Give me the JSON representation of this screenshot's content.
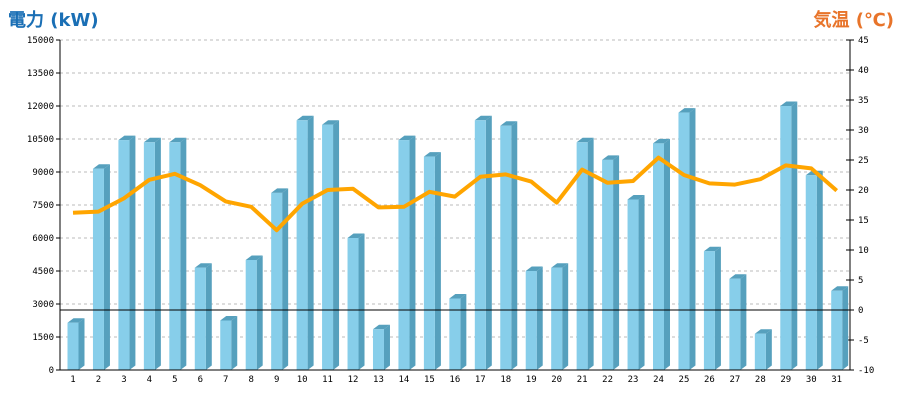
{
  "chart_data": {
    "type": "bar",
    "left_title": "電力 (kW)",
    "right_title": "気温 (℃)",
    "categories": [
      "1",
      "2",
      "3",
      "4",
      "5",
      "6",
      "7",
      "8",
      "9",
      "10",
      "11",
      "12",
      "13",
      "14",
      "15",
      "16",
      "17",
      "18",
      "19",
      "20",
      "21",
      "22",
      "23",
      "24",
      "25",
      "26",
      "27",
      "28",
      "29",
      "30",
      "31"
    ],
    "series": [
      {
        "name": "電力 (kW)",
        "type": "bar",
        "axis": "left",
        "values": [
          2150,
          9150,
          10450,
          10350,
          10350,
          4650,
          2250,
          5000,
          8050,
          11350,
          11150,
          6000,
          1850,
          10450,
          9700,
          3250,
          11350,
          11100,
          4500,
          4650,
          10350,
          9550,
          7750,
          10300,
          11700,
          5400,
          4150,
          1650,
          12000,
          8850,
          3600
        ]
      },
      {
        "name": "気温 (℃)",
        "type": "line",
        "axis": "right",
        "values": [
          16.2,
          16.4,
          18.6,
          21.7,
          22.7,
          20.8,
          18.1,
          17.2,
          13.3,
          17.7,
          20.0,
          20.2,
          17.1,
          17.2,
          19.7,
          18.9,
          22.2,
          22.6,
          21.4,
          17.9,
          23.4,
          21.2,
          21.5,
          25.4,
          22.5,
          21.1,
          20.9,
          21.8,
          24.1,
          23.6,
          19.9
        ]
      }
    ],
    "left_axis": {
      "ylim": [
        0,
        15000
      ],
      "ticks": [
        "0",
        "1500",
        "3000",
        "4500",
        "6000",
        "7500",
        "9000",
        "10500",
        "12000",
        "13500",
        "15000"
      ]
    },
    "right_axis": {
      "ylim": [
        -10,
        45
      ],
      "ticks": [
        "-10",
        "-5",
        "0",
        "5",
        "10",
        "15",
        "20",
        "25",
        "30",
        "35",
        "40",
        "45"
      ]
    },
    "reference_line": {
      "axis": "right",
      "value": 0
    },
    "grid": true,
    "colors": {
      "bar_front": "#87ceea",
      "bar_side": "#56a0bd",
      "line": "#ffa500",
      "left_title": "#1a6fb5",
      "right_title": "#e8742a"
    }
  }
}
